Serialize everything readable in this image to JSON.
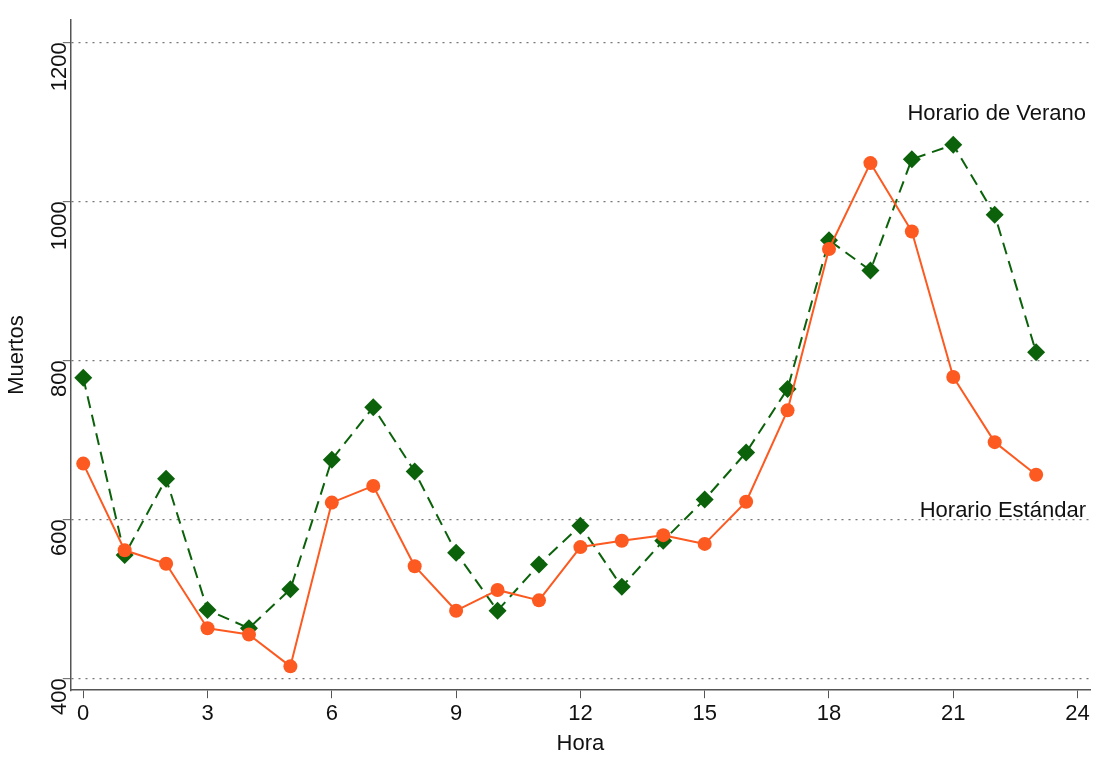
{
  "chart_data": {
    "type": "line",
    "xlabel": "Hora",
    "ylabel": "Muertos",
    "xlim": [
      -0.3,
      24.3
    ],
    "xticks": [
      0,
      3,
      6,
      9,
      12,
      15,
      18,
      21,
      24
    ],
    "ylim": [
      385,
      1228
    ],
    "yticks": [
      400,
      600,
      800,
      1000,
      1200
    ],
    "grid": "y",
    "legend": false,
    "x": [
      0,
      1,
      2,
      3,
      4,
      5,
      6,
      7,
      8,
      9,
      10,
      11,
      12,
      13,
      14,
      15,
      16,
      17,
      18,
      19,
      20,
      21,
      22,
      23
    ],
    "series": [
      {
        "name": "Horario de Verano",
        "color": "#0b620b",
        "marker": "diamond",
        "line_style": "dashed",
        "values": [
          778,
          555,
          651,
          486,
          463,
          512,
          675,
          741,
          660,
          558,
          485,
          543,
          592,
          515,
          573,
          625,
          684,
          764,
          951,
          913,
          1053,
          1071,
          983,
          810
        ]
      },
      {
        "name": "Horario Estándar",
        "color": "#fc5a20",
        "marker": "circle",
        "line_style": "solid",
        "values": [
          670,
          561,
          544,
          463,
          455,
          415,
          621,
          642,
          541,
          485,
          511,
          498,
          565,
          573,
          580,
          569,
          622,
          737,
          940,
          1048,
          962,
          779,
          697,
          656
        ]
      }
    ]
  }
}
